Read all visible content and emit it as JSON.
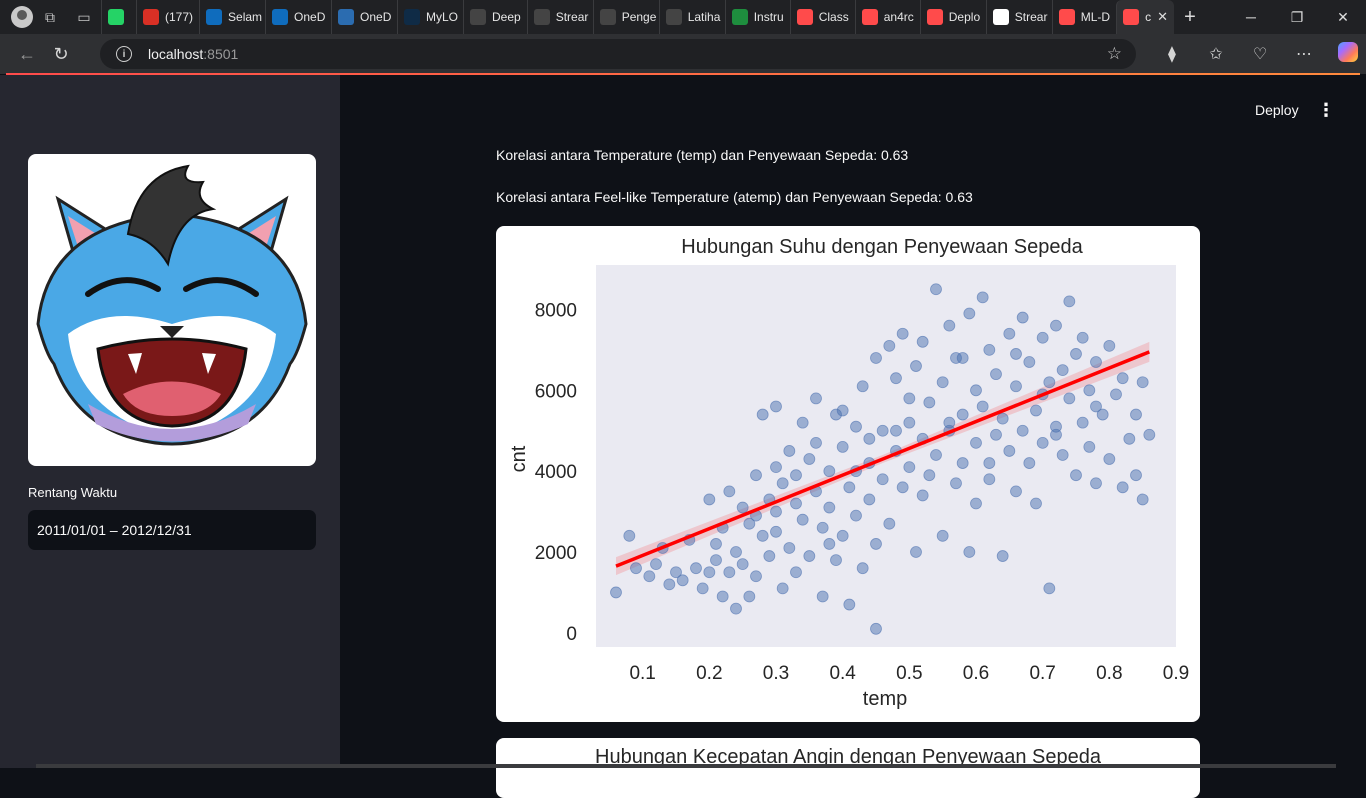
{
  "browser": {
    "tabs": [
      {
        "label": "",
        "icon": "whatsapp-icon",
        "color": "#25d366"
      },
      {
        "label": "(177)",
        "icon": "gmail-icon",
        "color": "#d93025"
      },
      {
        "label": "Selam",
        "icon": "onedrive-icon",
        "color": "#0f6cbd"
      },
      {
        "label": "OneD",
        "icon": "onedrive-icon",
        "color": "#0f6cbd"
      },
      {
        "label": "OneD",
        "icon": "mylo-icon",
        "color": "#2b6cb0"
      },
      {
        "label": "MyLO",
        "icon": "deepl-icon",
        "color": "#0f2b46"
      },
      {
        "label": "Deep",
        "icon": "openai-icon",
        "color": "#444"
      },
      {
        "label": "Strear",
        "icon": "g-icon",
        "color": "#444"
      },
      {
        "label": "Penge",
        "icon": "g-icon",
        "color": "#444"
      },
      {
        "label": "Latiha",
        "icon": "g-icon",
        "color": "#444"
      },
      {
        "label": "Instru",
        "icon": "classroom-icon",
        "color": "#1e8e3e"
      },
      {
        "label": "Class",
        "icon": "streamlit-icon",
        "color": "#ff4b4b"
      },
      {
        "label": "an4rc",
        "icon": "streamlit-icon",
        "color": "#ff4b4b"
      },
      {
        "label": "Deplo",
        "icon": "streamlit-icon",
        "color": "#ff4b4b"
      },
      {
        "label": "Strear",
        "icon": "github-icon",
        "color": "#fff"
      },
      {
        "label": "ML-D",
        "icon": "streamlit-icon",
        "color": "#ff4b4b"
      },
      {
        "label": "c",
        "icon": "streamlit-icon",
        "color": "#ff4b4b"
      }
    ],
    "url_host": "localhost",
    "url_port": ":8501"
  },
  "sidebar": {
    "range_label": "Rentang Waktu",
    "range_value": "2011/01/01 – 2012/12/31"
  },
  "header": {
    "deploy_label": "Deploy",
    "menu_glyph": "⋮"
  },
  "main": {
    "corr_temp": "Korelasi antara Temperature (temp) dan Penyewaan Sepeda: 0.63",
    "corr_atemp": "Korelasi antara Feel-like Temperature (atemp) dan Penyewaan Sepeda: 0.63",
    "chart2_title": "Hubungan Kecepatan Angin dengan Penyewaan Sepeda"
  },
  "chart_data": {
    "type": "scatter",
    "title": "Hubungan Suhu dengan Penyewaan Sepeda",
    "xlabel": "temp",
    "ylabel": "cnt",
    "x_ticks": [
      0.1,
      0.2,
      0.3,
      0.4,
      0.5,
      0.6,
      0.7,
      0.8,
      0.9
    ],
    "y_ticks": [
      0,
      2000,
      4000,
      6000,
      8000
    ],
    "xlim": [
      0.03,
      0.9
    ],
    "ylim": [
      -350,
      9100
    ],
    "point_color": "#4c72b0",
    "regression_color": "#ff0000",
    "regression": {
      "x_start": 0.06,
      "y_start": 1650,
      "x_end": 0.86,
      "y_end": 6950
    },
    "points": [
      [
        0.06,
        1000
      ],
      [
        0.08,
        2400
      ],
      [
        0.09,
        1600
      ],
      [
        0.11,
        1400
      ],
      [
        0.12,
        1700
      ],
      [
        0.13,
        2100
      ],
      [
        0.14,
        1200
      ],
      [
        0.15,
        1500
      ],
      [
        0.16,
        1300
      ],
      [
        0.17,
        2300
      ],
      [
        0.18,
        1600
      ],
      [
        0.19,
        1100
      ],
      [
        0.2,
        1500
      ],
      [
        0.2,
        3300
      ],
      [
        0.21,
        1800
      ],
      [
        0.22,
        2600
      ],
      [
        0.22,
        900
      ],
      [
        0.23,
        1500
      ],
      [
        0.23,
        3500
      ],
      [
        0.24,
        2000
      ],
      [
        0.24,
        600
      ],
      [
        0.25,
        1700
      ],
      [
        0.25,
        3100
      ],
      [
        0.26,
        2700
      ],
      [
        0.26,
        900
      ],
      [
        0.27,
        3900
      ],
      [
        0.27,
        1400
      ],
      [
        0.28,
        2400
      ],
      [
        0.28,
        5400
      ],
      [
        0.29,
        3300
      ],
      [
        0.29,
        1900
      ],
      [
        0.3,
        4100
      ],
      [
        0.3,
        2500
      ],
      [
        0.3,
        5600
      ],
      [
        0.31,
        1100
      ],
      [
        0.31,
        3700
      ],
      [
        0.32,
        2100
      ],
      [
        0.32,
        4500
      ],
      [
        0.33,
        3200
      ],
      [
        0.33,
        1500
      ],
      [
        0.34,
        5200
      ],
      [
        0.34,
        2800
      ],
      [
        0.35,
        4300
      ],
      [
        0.35,
        1900
      ],
      [
        0.36,
        3500
      ],
      [
        0.36,
        5800
      ],
      [
        0.37,
        2600
      ],
      [
        0.37,
        900
      ],
      [
        0.38,
        4000
      ],
      [
        0.38,
        3100
      ],
      [
        0.39,
        5400
      ],
      [
        0.39,
        1800
      ],
      [
        0.4,
        4600
      ],
      [
        0.4,
        2400
      ],
      [
        0.41,
        3600
      ],
      [
        0.41,
        700
      ],
      [
        0.42,
        5100
      ],
      [
        0.42,
        2900
      ],
      [
        0.43,
        6100
      ],
      [
        0.43,
        1600
      ],
      [
        0.44,
        4200
      ],
      [
        0.44,
        3300
      ],
      [
        0.45,
        6800
      ],
      [
        0.45,
        2200
      ],
      [
        0.45,
        100
      ],
      [
        0.46,
        5000
      ],
      [
        0.46,
        3800
      ],
      [
        0.47,
        7100
      ],
      [
        0.47,
        2700
      ],
      [
        0.48,
        4500
      ],
      [
        0.48,
        6300
      ],
      [
        0.49,
        3600
      ],
      [
        0.49,
        7400
      ],
      [
        0.5,
        5200
      ],
      [
        0.5,
        4100
      ],
      [
        0.51,
        2000
      ],
      [
        0.51,
        6600
      ],
      [
        0.52,
        4800
      ],
      [
        0.52,
        7200
      ],
      [
        0.53,
        3900
      ],
      [
        0.53,
        5700
      ],
      [
        0.54,
        8500
      ],
      [
        0.54,
        4400
      ],
      [
        0.55,
        6200
      ],
      [
        0.55,
        2400
      ],
      [
        0.56,
        5000
      ],
      [
        0.56,
        7600
      ],
      [
        0.57,
        3700
      ],
      [
        0.57,
        6800
      ],
      [
        0.58,
        5400
      ],
      [
        0.58,
        4200
      ],
      [
        0.59,
        7900
      ],
      [
        0.59,
        2000
      ],
      [
        0.6,
        6000
      ],
      [
        0.6,
        4700
      ],
      [
        0.61,
        8300
      ],
      [
        0.61,
        5600
      ],
      [
        0.62,
        3800
      ],
      [
        0.62,
        7000
      ],
      [
        0.63,
        4900
      ],
      [
        0.63,
        6400
      ],
      [
        0.64,
        1900
      ],
      [
        0.64,
        5300
      ],
      [
        0.65,
        7400
      ],
      [
        0.65,
        4500
      ],
      [
        0.66,
        6100
      ],
      [
        0.66,
        3500
      ],
      [
        0.67,
        7800
      ],
      [
        0.67,
        5000
      ],
      [
        0.68,
        4200
      ],
      [
        0.68,
        6700
      ],
      [
        0.69,
        5500
      ],
      [
        0.69,
        3200
      ],
      [
        0.7,
        7300
      ],
      [
        0.7,
        4700
      ],
      [
        0.71,
        6200
      ],
      [
        0.71,
        1100
      ],
      [
        0.72,
        5100
      ],
      [
        0.72,
        7600
      ],
      [
        0.73,
        4400
      ],
      [
        0.73,
        6500
      ],
      [
        0.74,
        8200
      ],
      [
        0.74,
        5800
      ],
      [
        0.75,
        3900
      ],
      [
        0.75,
        6900
      ],
      [
        0.76,
        5200
      ],
      [
        0.76,
        7300
      ],
      [
        0.77,
        4600
      ],
      [
        0.77,
        6000
      ],
      [
        0.78,
        3700
      ],
      [
        0.78,
        6700
      ],
      [
        0.79,
        5400
      ],
      [
        0.8,
        4300
      ],
      [
        0.8,
        7100
      ],
      [
        0.81,
        5900
      ],
      [
        0.82,
        3600
      ],
      [
        0.82,
        6300
      ],
      [
        0.83,
        4800
      ],
      [
        0.84,
        5400
      ],
      [
        0.84,
        3900
      ],
      [
        0.85,
        3300
      ],
      [
        0.86,
        4900
      ],
      [
        0.85,
        6200
      ],
      [
        0.44,
        4800
      ],
      [
        0.4,
        5500
      ],
      [
        0.36,
        4700
      ],
      [
        0.33,
        3900
      ],
      [
        0.27,
        2900
      ],
      [
        0.21,
        2200
      ],
      [
        0.3,
        3000
      ],
      [
        0.5,
        5800
      ],
      [
        0.58,
        6800
      ],
      [
        0.66,
        6900
      ],
      [
        0.72,
        4900
      ],
      [
        0.62,
        4200
      ],
      [
        0.56,
        5200
      ],
      [
        0.7,
        5900
      ],
      [
        0.78,
        5600
      ],
      [
        0.48,
        5000
      ],
      [
        0.42,
        4000
      ],
      [
        0.38,
        2200
      ],
      [
        0.52,
        3400
      ],
      [
        0.6,
        3200
      ]
    ]
  }
}
